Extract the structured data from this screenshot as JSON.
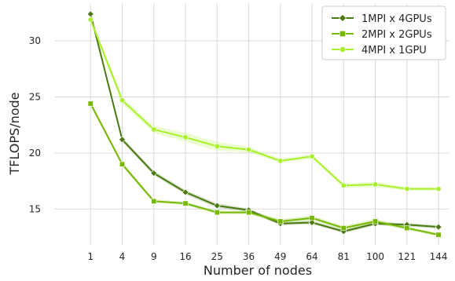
{
  "chart_data": {
    "type": "line",
    "title": "",
    "xlabel": "Number of nodes",
    "ylabel": "TFLOPS/node",
    "x": [
      1,
      4,
      9,
      16,
      25,
      36,
      49,
      64,
      81,
      100,
      121,
      144
    ],
    "x_tick_labels": [
      "1",
      "4",
      "9",
      "16",
      "25",
      "36",
      "49",
      "64",
      "81",
      "100",
      "121",
      "144"
    ],
    "x_scale": "sqrt",
    "xlim": [
      0,
      150
    ],
    "y_ticks": [
      15,
      20,
      25,
      30
    ],
    "ylim": [
      11.8,
      33.3
    ],
    "grid": "on",
    "legend_position": "top-right",
    "series": [
      {
        "name": "1MPI x 4GPUs",
        "color": "#4b7a12",
        "marker": "diamond",
        "values": [
          32.4,
          21.2,
          18.2,
          16.5,
          15.3,
          14.9,
          13.7,
          13.8,
          13.0,
          13.7,
          13.6,
          13.4
        ],
        "band": [
          0.25,
          0.2,
          0.2,
          0.2,
          0.2,
          0.15,
          0.15,
          0.15,
          0.15,
          0.15,
          0.15,
          0.15
        ]
      },
      {
        "name": "2MPI x 2GPUs",
        "color": "#76b900",
        "marker": "square",
        "values": [
          24.4,
          19.0,
          15.7,
          15.5,
          14.7,
          14.7,
          13.9,
          14.2,
          13.3,
          13.9,
          13.3,
          12.7
        ],
        "band": [
          0.2,
          0.2,
          0.15,
          0.15,
          0.15,
          0.15,
          0.2,
          0.2,
          0.2,
          0.2,
          0.15,
          0.15
        ]
      },
      {
        "name": "4MPI x 1GPU",
        "color": "#a8f02a",
        "marker": "circle",
        "values": [
          31.9,
          24.7,
          22.1,
          21.4,
          20.6,
          20.3,
          19.3,
          19.7,
          17.1,
          17.2,
          16.8,
          16.8
        ],
        "band": [
          0.3,
          0.3,
          0.3,
          0.4,
          0.4,
          0.25,
          0.2,
          0.2,
          0.2,
          0.25,
          0.15,
          0.15
        ]
      }
    ]
  }
}
